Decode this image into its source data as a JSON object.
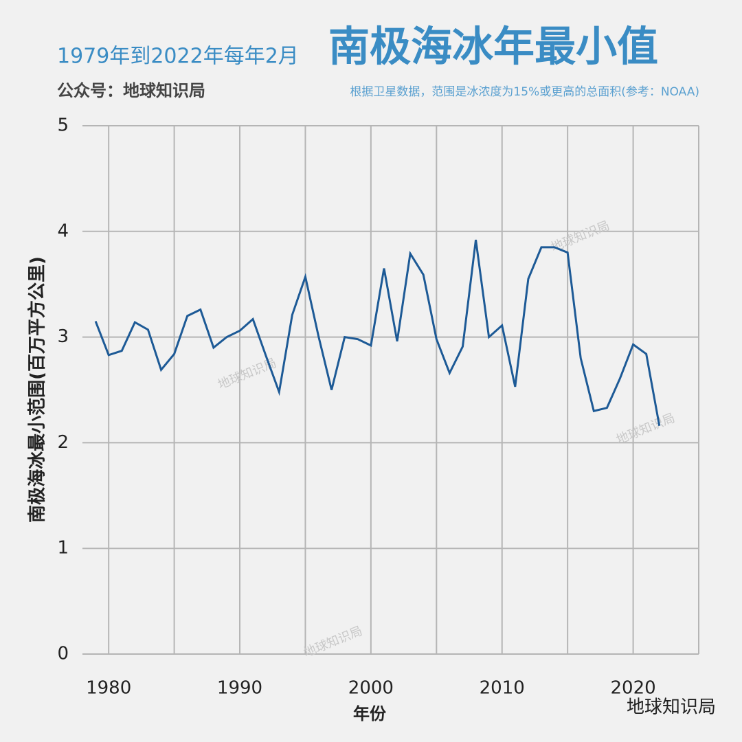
{
  "chart_data": {
    "type": "line",
    "title_prefix": "1979年到2022年每年2月",
    "title": "南极海冰年最小值",
    "subtitle": "公众号：地球知识局",
    "note": "根据卫星数据，范围是冰浓度为15%或更高的总面积(参考：NOAA)",
    "y_label": "南极海冰最小范围(百万平方公里)",
    "x_label": "年份",
    "x": [
      1979,
      1980,
      1981,
      1982,
      1983,
      1984,
      1985,
      1986,
      1987,
      1988,
      1989,
      1990,
      1991,
      1992,
      1993,
      1994,
      1995,
      1996,
      1997,
      1998,
      1999,
      2000,
      2001,
      2002,
      2003,
      2004,
      2005,
      2006,
      2007,
      2008,
      2009,
      2010,
      2011,
      2012,
      2013,
      2014,
      2015,
      2016,
      2017,
      2018,
      2019,
      2020,
      2021,
      2022
    ],
    "values": [
      3.15,
      2.83,
      2.87,
      3.14,
      3.07,
      2.69,
      2.84,
      3.2,
      3.26,
      2.9,
      3.0,
      3.06,
      3.17,
      2.82,
      2.48,
      3.21,
      3.57,
      3.01,
      2.5,
      3.0,
      2.98,
      2.92,
      3.65,
      2.96,
      3.79,
      3.59,
      2.98,
      2.66,
      2.91,
      3.92,
      3.0,
      3.11,
      2.53,
      3.55,
      3.85,
      3.85,
      3.8,
      2.8,
      2.3,
      2.33,
      2.61,
      2.93,
      2.84,
      2.16
    ],
    "color": "#1d5a96",
    "xlim": [
      1978,
      2025
    ],
    "xticks": [
      1980,
      1990,
      2000,
      2010,
      2020
    ],
    "x_minor_ticks": [
      1985,
      1995,
      2005,
      2015,
      2025
    ],
    "ylim": [
      0,
      5
    ],
    "yticks": [
      0,
      1,
      2,
      3,
      4,
      5
    ],
    "grid": true,
    "watermarks": [
      "地球知识局",
      "地球知识局",
      "地球知识局",
      "地球知识局"
    ],
    "brand": "地球知识局"
  }
}
